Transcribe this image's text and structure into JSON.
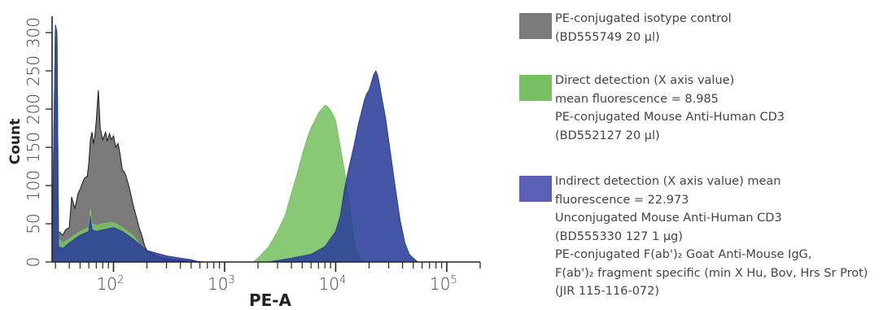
{
  "chart_data": {
    "type": "area",
    "xlabel": "PE-A",
    "ylabel": "Count",
    "x_scale": "log",
    "xlim": [
      28,
      200000
    ],
    "ylim": [
      0,
      315
    ],
    "x_ticks": [
      {
        "value": 100,
        "base": "10",
        "exp": "2"
      },
      {
        "value": 1000,
        "base": "10",
        "exp": "3"
      },
      {
        "value": 10000,
        "base": "10",
        "exp": "4"
      },
      {
        "value": 100000,
        "base": "10",
        "exp": "5"
      }
    ],
    "y_ticks": [
      0,
      50,
      100,
      150,
      200,
      250,
      300
    ],
    "series": [
      {
        "key": "isotype",
        "color": "#7a7a7a",
        "x": [
          28,
          30,
          31,
          32,
          35,
          37,
          40,
          42,
          45,
          48,
          50,
          53,
          55,
          58,
          60,
          62,
          64,
          66,
          68,
          70,
          73,
          76,
          80,
          85,
          88,
          92,
          96,
          100,
          105,
          110,
          115,
          120,
          125,
          130,
          140,
          150,
          160,
          170,
          180,
          190,
          200,
          220,
          240,
          260,
          280,
          300,
          340,
          400,
          480,
          560,
          640
        ],
        "y": [
          0,
          310,
          300,
          40,
          35,
          42,
          45,
          85,
          70,
          90,
          95,
          105,
          110,
          112,
          130,
          160,
          170,
          155,
          165,
          185,
          225,
          175,
          160,
          170,
          158,
          168,
          160,
          165,
          150,
          155,
          140,
          120,
          118,
          112,
          95,
          75,
          60,
          45,
          35,
          22,
          15,
          12,
          8,
          6,
          5,
          4,
          3,
          2,
          1,
          1,
          0
        ]
      },
      {
        "key": "direct",
        "color": "#77c163",
        "x": [
          28,
          30,
          31,
          32,
          35,
          40,
          50,
          60,
          62,
          64,
          70,
          80,
          100,
          120,
          150,
          200,
          300,
          1800,
          2000,
          2500,
          3000,
          3500,
          4000,
          4500,
          5000,
          5500,
          6000,
          6500,
          7000,
          7500,
          8000,
          8500,
          9000,
          9500,
          10000,
          11000,
          12000,
          13000,
          14000,
          15000,
          16000,
          17000,
          18000,
          19000,
          20000
        ],
        "y": [
          0,
          310,
          300,
          30,
          25,
          30,
          40,
          45,
          70,
          50,
          48,
          50,
          52,
          45,
          35,
          10,
          0,
          0,
          5,
          20,
          40,
          60,
          90,
          115,
          140,
          160,
          175,
          185,
          195,
          200,
          205,
          203,
          198,
          192,
          185,
          150,
          120,
          85,
          50,
          20,
          8,
          3,
          1,
          0,
          0
        ]
      },
      {
        "key": "indirect",
        "color": "#2b3e9a",
        "x": [
          28,
          30,
          31,
          32,
          35,
          40,
          50,
          60,
          62,
          64,
          70,
          80,
          100,
          120,
          150,
          200,
          300,
          400,
          500,
          600,
          2500,
          4000,
          6000,
          8000,
          10000,
          11000,
          12000,
          13000,
          14000,
          15000,
          16000,
          17000,
          18000,
          19000,
          20000,
          21000,
          22000,
          23000,
          24000,
          25000,
          26000,
          28000,
          30000,
          32000,
          35000,
          38000,
          42000,
          46000,
          50000,
          55000
        ],
        "y": [
          0,
          310,
          300,
          20,
          18,
          25,
          35,
          40,
          60,
          42,
          40,
          42,
          45,
          40,
          30,
          15,
          8,
          5,
          3,
          0,
          0,
          5,
          10,
          20,
          40,
          60,
          95,
          120,
          140,
          160,
          180,
          195,
          210,
          220,
          225,
          235,
          245,
          250,
          243,
          230,
          215,
          190,
          160,
          130,
          90,
          55,
          25,
          10,
          5,
          0
        ]
      }
    ],
    "legend": [
      {
        "key": "isotype",
        "lines": [
          "PE-conjugated isotype control",
          "(BD555749 20 µl)"
        ]
      },
      {
        "key": "direct",
        "lines": [
          "Direct detection (X axis value)",
          "mean fluorescence = 8.985",
          "PE-conjugated Mouse Anti-Human CD3",
          "(BD552127 20 µl)"
        ]
      },
      {
        "key": "indirect",
        "lines": [
          "Indirect detection (X axis value) mean",
          "fluorescence = 22.973",
          "Unconjugated Mouse Anti-Human CD3",
          "(BD555330 127 1 µg)",
          "PE-conjugated F(ab')₂ Goat Anti-Mouse IgG,",
          "F(ab')₂ fragment specific (min X Hu, Bov, Hrs Sr Prot)",
          "(JIR 115-116-072)"
        ]
      }
    ]
  }
}
